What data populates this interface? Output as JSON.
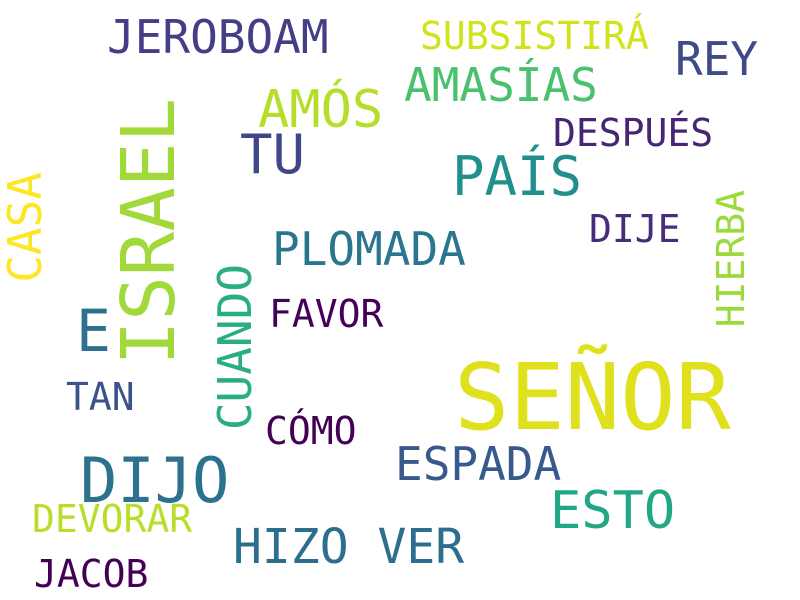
{
  "words": [
    {
      "text": "SEÑOR",
      "color": "#dfe11d"
    },
    {
      "text": "ISRAEL",
      "color": "#a1d83a"
    },
    {
      "text": "DIJO",
      "color": "#2c718e"
    },
    {
      "text": "PAÍS",
      "color": "#21908c"
    },
    {
      "text": "HIZO VER",
      "color": "#2d6e8e"
    },
    {
      "text": "ESTO",
      "color": "#22a784"
    },
    {
      "text": "JEROBOAM",
      "color": "#433e85"
    },
    {
      "text": "AMÓS",
      "color": "#b5de2b"
    },
    {
      "text": "TU",
      "color": "#3f4788"
    },
    {
      "text": "ESPADA",
      "color": "#38598c"
    },
    {
      "text": "CUANDO",
      "color": "#29af7f"
    },
    {
      "text": "AMASÍAS",
      "color": "#4ac16d"
    },
    {
      "text": "PLOMADA",
      "color": "#2a768e"
    },
    {
      "text": "REY",
      "color": "#3f4a89"
    },
    {
      "text": "E",
      "color": "#2d718e"
    },
    {
      "text": "CASA",
      "color": "#fde725"
    },
    {
      "text": "SUBSISTIRÁ",
      "color": "#d2e21b"
    },
    {
      "text": "HIERBA",
      "color": "#9bd93c"
    },
    {
      "text": "DEVORAR",
      "color": "#b8de29"
    },
    {
      "text": "JACOB",
      "color": "#440154"
    },
    {
      "text": "DESPUÉS",
      "color": "#482475"
    },
    {
      "text": "DIJE",
      "color": "#472c7a"
    },
    {
      "text": "FAVOR",
      "color": "#44015a"
    },
    {
      "text": "CÓMO",
      "color": "#440154"
    },
    {
      "text": "TAN",
      "color": "#3b528b"
    }
  ]
}
